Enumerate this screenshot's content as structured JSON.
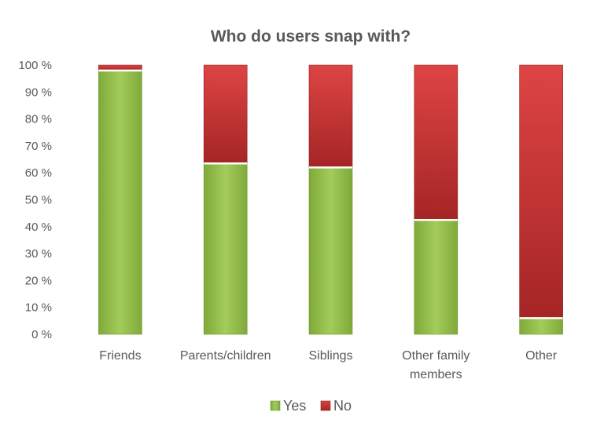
{
  "chart_data": {
    "type": "bar",
    "stacked": true,
    "percent": true,
    "title": "Who do users snap with?",
    "categories": [
      "Friends",
      "Parents/children",
      "Siblings",
      "Other family members",
      "Other"
    ],
    "category_lines": [
      [
        "Friends"
      ],
      [
        "Parents/children"
      ],
      [
        "Siblings"
      ],
      [
        "Other family",
        "members"
      ],
      [
        "Other"
      ]
    ],
    "series": [
      {
        "name": "Yes",
        "values": [
          98,
          63.5,
          62,
          42.5,
          6
        ],
        "color": "#8DB743"
      },
      {
        "name": "No",
        "values": [
          2,
          36.5,
          38,
          57.5,
          94
        ],
        "color": "#C9302C"
      }
    ],
    "ylim": [
      0,
      100
    ],
    "yticks": [
      "0 %",
      "10 %",
      "20 %",
      "30 %",
      "40 %",
      "50 %",
      "60 %",
      "70 %",
      "80 %",
      "90 %",
      "100 %"
    ],
    "grid": false,
    "legend_position": "bottom"
  }
}
